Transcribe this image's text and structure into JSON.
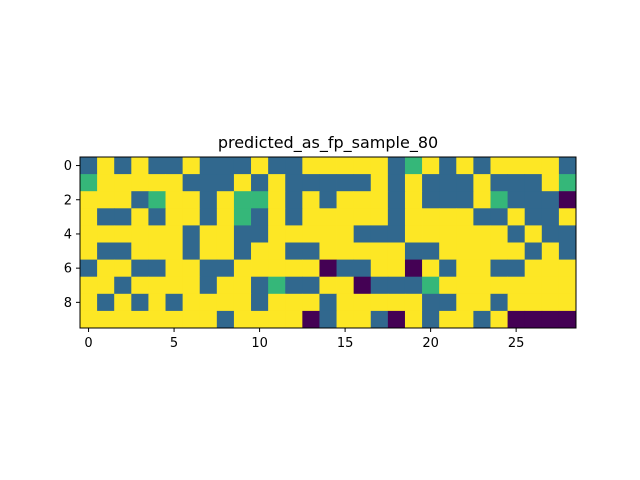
{
  "chart_data": {
    "type": "heatmap",
    "title": "predicted_as_fp_sample_80",
    "xlabel": "",
    "ylabel": "",
    "rows": 10,
    "cols": 29,
    "x_ticks": [
      0,
      5,
      10,
      15,
      20,
      25
    ],
    "y_ticks": [
      0,
      2,
      4,
      6,
      8
    ],
    "value_range": [
      0,
      3
    ],
    "colormap": "viridis",
    "colors": {
      "0": "#440154",
      "1": "#31688e",
      "2": "#35b779",
      "3": "#fde725"
    },
    "values": [
      [
        1,
        3,
        1,
        3,
        1,
        1,
        3,
        1,
        1,
        1,
        3,
        1,
        1,
        3,
        3,
        3,
        3,
        3,
        1,
        2,
        3,
        1,
        3,
        1,
        3,
        3,
        3,
        3,
        1
      ],
      [
        2,
        3,
        3,
        3,
        3,
        3,
        1,
        1,
        1,
        3,
        1,
        3,
        1,
        1,
        1,
        1,
        1,
        3,
        1,
        3,
        1,
        1,
        1,
        3,
        1,
        1,
        1,
        3,
        2
      ],
      [
        3,
        3,
        3,
        1,
        2,
        3,
        3,
        1,
        3,
        2,
        2,
        3,
        1,
        3,
        1,
        3,
        3,
        3,
        1,
        3,
        1,
        1,
        1,
        3,
        2,
        1,
        1,
        1,
        0
      ],
      [
        3,
        1,
        1,
        3,
        1,
        3,
        3,
        1,
        3,
        2,
        1,
        3,
        1,
        3,
        3,
        3,
        3,
        3,
        1,
        3,
        3,
        3,
        3,
        1,
        1,
        3,
        1,
        1,
        3
      ],
      [
        3,
        3,
        3,
        3,
        3,
        3,
        1,
        3,
        3,
        1,
        1,
        3,
        3,
        3,
        3,
        3,
        1,
        1,
        1,
        3,
        3,
        3,
        3,
        3,
        3,
        1,
        3,
        1,
        1
      ],
      [
        3,
        1,
        1,
        3,
        3,
        3,
        1,
        3,
        3,
        1,
        3,
        3,
        1,
        1,
        3,
        3,
        3,
        3,
        3,
        1,
        1,
        3,
        3,
        3,
        3,
        3,
        1,
        3,
        1
      ],
      [
        1,
        3,
        3,
        1,
        1,
        3,
        3,
        1,
        1,
        3,
        3,
        3,
        3,
        3,
        0,
        1,
        1,
        3,
        3,
        0,
        3,
        1,
        3,
        3,
        1,
        1,
        3,
        3,
        3
      ],
      [
        3,
        3,
        1,
        3,
        3,
        3,
        3,
        1,
        3,
        3,
        1,
        2,
        1,
        1,
        3,
        3,
        0,
        1,
        1,
        1,
        2,
        3,
        3,
        3,
        3,
        3,
        3,
        3,
        3
      ],
      [
        3,
        1,
        3,
        1,
        3,
        1,
        3,
        3,
        3,
        3,
        1,
        3,
        3,
        3,
        1,
        3,
        3,
        3,
        3,
        3,
        1,
        1,
        3,
        3,
        1,
        3,
        3,
        3,
        3
      ],
      [
        3,
        3,
        3,
        3,
        3,
        3,
        3,
        3,
        1,
        3,
        3,
        3,
        3,
        0,
        1,
        3,
        3,
        1,
        0,
        3,
        1,
        3,
        3,
        1,
        3,
        0,
        0,
        0,
        0
      ]
    ]
  }
}
